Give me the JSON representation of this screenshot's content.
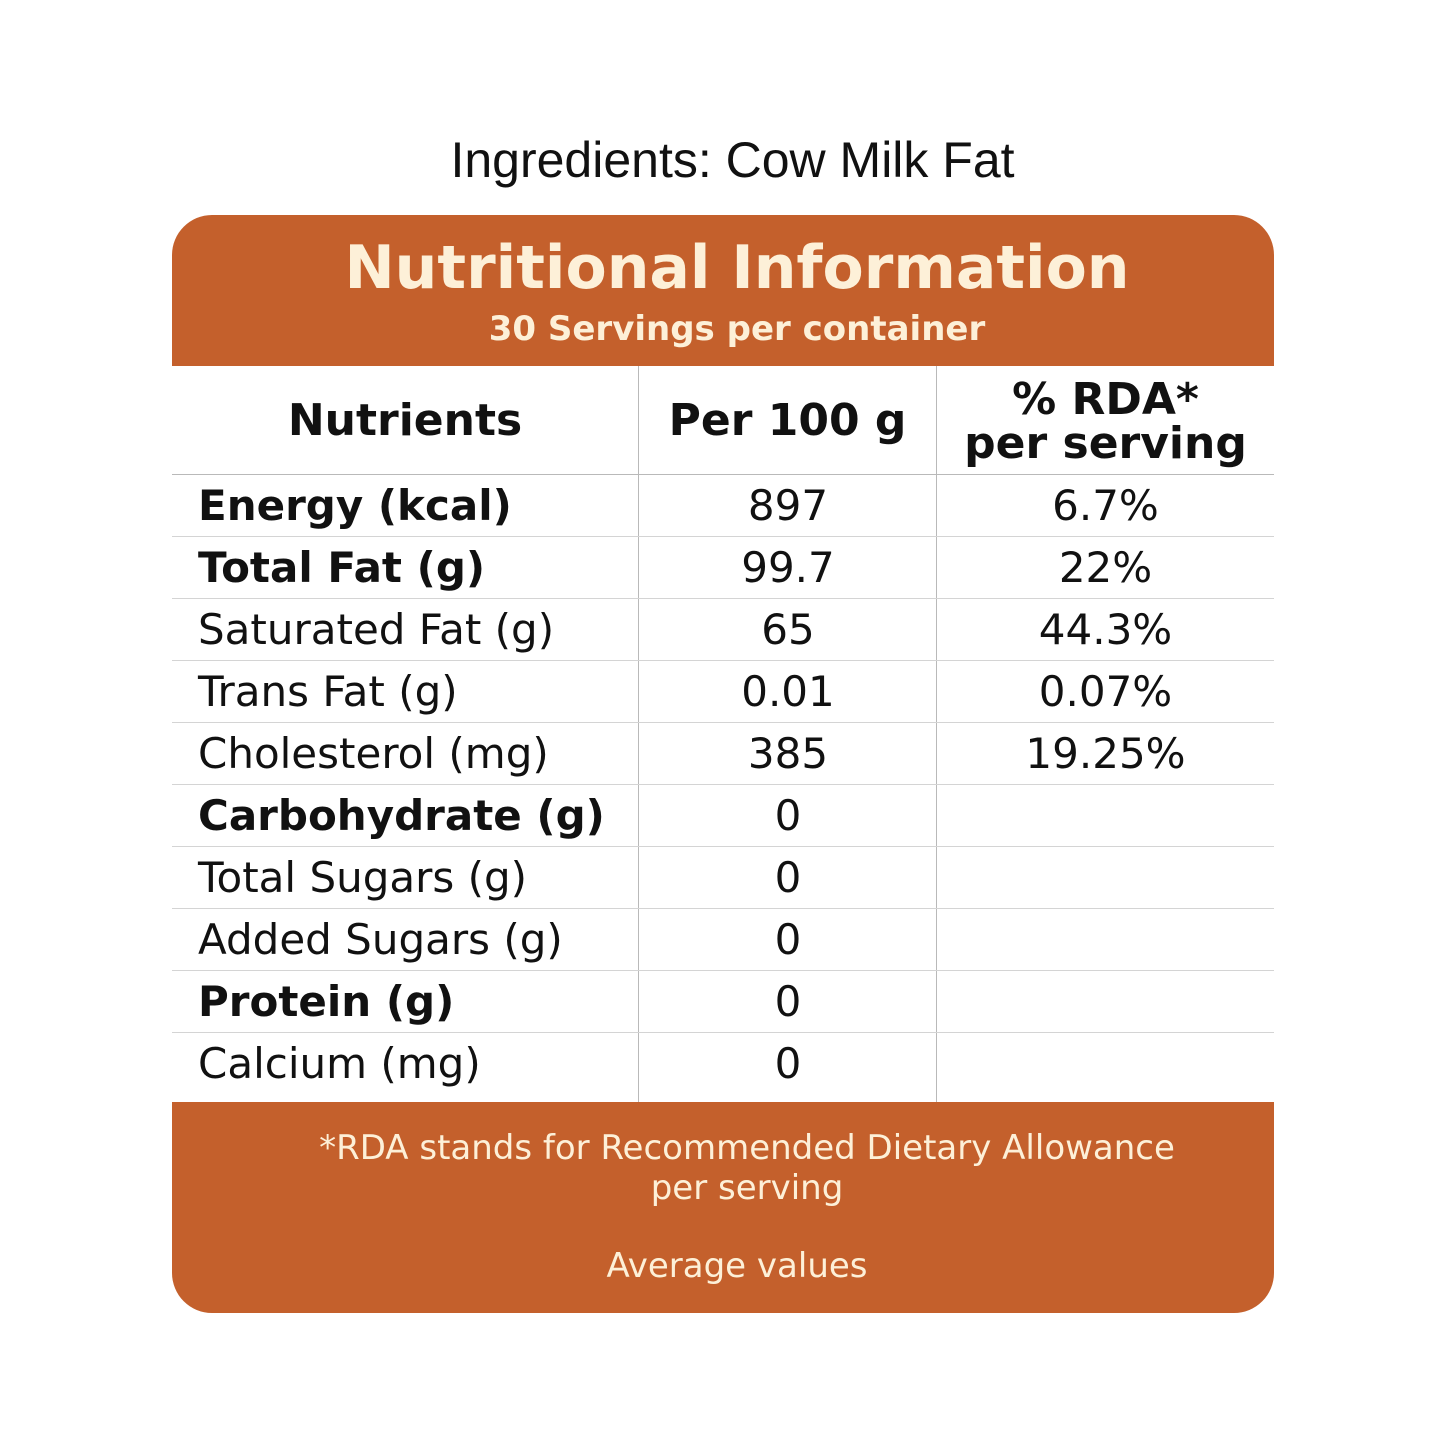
{
  "ingredients": "Ingredients: Cow Milk Fat",
  "panel": {
    "title": "Nutritional Information",
    "subtitle": "30 Servings per container"
  },
  "table": {
    "headers": {
      "nutrients": "Nutrients",
      "per100": "Per 100 g",
      "rda_line1": "% RDA*",
      "rda_line2": "per serving"
    },
    "rows": [
      {
        "name": "Energy (kcal)",
        "per100": "897",
        "rda": "6.7%",
        "bold": true
      },
      {
        "name": "Total Fat (g)",
        "per100": "99.7",
        "rda": "22%",
        "bold": true
      },
      {
        "name": "Saturated Fat (g)",
        "per100": "65",
        "rda": "44.3%",
        "bold": false
      },
      {
        "name": "Trans Fat (g)",
        "per100": "0.01",
        "rda": "0.07%",
        "bold": false
      },
      {
        "name": "Cholesterol (mg)",
        "per100": "385",
        "rda": "19.25%",
        "bold": false
      },
      {
        "name": "Carbohydrate (g)",
        "per100": "0",
        "rda": "",
        "bold": true
      },
      {
        "name": "Total Sugars (g)",
        "per100": "0",
        "rda": "",
        "bold": false
      },
      {
        "name": "Added Sugars (g)",
        "per100": "0",
        "rda": "",
        "bold": false
      },
      {
        "name": "Protein (g)",
        "per100": "0",
        "rda": "",
        "bold": true
      },
      {
        "name": "Calcium (mg)",
        "per100": "0",
        "rda": "",
        "bold": false
      }
    ]
  },
  "footer": {
    "note_line1": "*RDA stands for Recommended Dietary Allowance",
    "note_line2": "per serving",
    "average": "Average values"
  },
  "colors": {
    "accent": "#c4602c",
    "accent_text": "#fdf0d8",
    "grid": "#b9b9b9"
  }
}
